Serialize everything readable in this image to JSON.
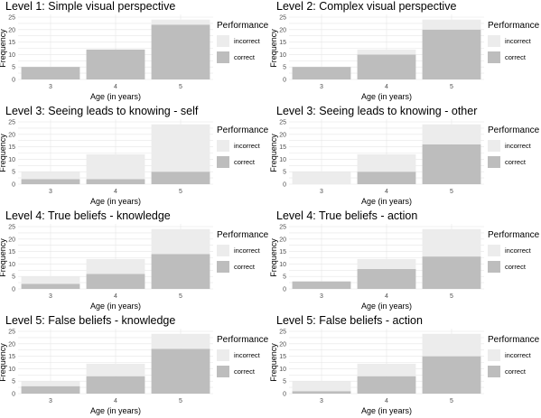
{
  "colors": {
    "incorrect": "#ececec",
    "correct": "#bdbdbd",
    "grid": "#e6e6e6",
    "tick_text": "#4d4d4d"
  },
  "legend": {
    "title": "Performance",
    "items": [
      {
        "label": "incorrect",
        "color": "#ececec"
      },
      {
        "label": "correct",
        "color": "#bdbdbd"
      }
    ]
  },
  "chart_data": [
    {
      "type": "bar",
      "stacked": true,
      "title": "Level 1: Simple visual perspective",
      "xlabel": "Age (in years)",
      "ylabel": "Frequency",
      "categories": [
        "3",
        "4",
        "5"
      ],
      "ylim": [
        0,
        25
      ],
      "yticks": [
        0,
        5,
        10,
        15,
        20,
        25
      ],
      "series": [
        {
          "name": "correct",
          "values": [
            5,
            12,
            22
          ]
        },
        {
          "name": "incorrect",
          "values": [
            0,
            0,
            2
          ]
        }
      ]
    },
    {
      "type": "bar",
      "stacked": true,
      "title": "Level 2: Complex visual perspective",
      "xlabel": "Age (in years)",
      "ylabel": "Frequency",
      "categories": [
        "3",
        "4",
        "5"
      ],
      "ylim": [
        0,
        25
      ],
      "yticks": [
        0,
        5,
        10,
        15,
        20,
        25
      ],
      "series": [
        {
          "name": "correct",
          "values": [
            5,
            10,
            20
          ]
        },
        {
          "name": "incorrect",
          "values": [
            0,
            2,
            4
          ]
        }
      ]
    },
    {
      "type": "bar",
      "stacked": true,
      "title": "Level 3: Seeing leads to knowing - self",
      "xlabel": "Age (in years)",
      "ylabel": "Frequency",
      "categories": [
        "3",
        "4",
        "5"
      ],
      "ylim": [
        0,
        25
      ],
      "yticks": [
        0,
        5,
        10,
        15,
        20,
        25
      ],
      "series": [
        {
          "name": "correct",
          "values": [
            2,
            2,
            5
          ]
        },
        {
          "name": "incorrect",
          "values": [
            3,
            10,
            19
          ]
        }
      ]
    },
    {
      "type": "bar",
      "stacked": true,
      "title": "Level 3: Seeing leads to knowing - other",
      "xlabel": "Age (in years)",
      "ylabel": "Frequency",
      "categories": [
        "3",
        "4",
        "5"
      ],
      "ylim": [
        0,
        25
      ],
      "yticks": [
        0,
        5,
        10,
        15,
        20,
        25
      ],
      "series": [
        {
          "name": "correct",
          "values": [
            0,
            5,
            16
          ]
        },
        {
          "name": "incorrect",
          "values": [
            5,
            7,
            8
          ]
        }
      ]
    },
    {
      "type": "bar",
      "stacked": true,
      "title": "Level 4: True beliefs - knowledge",
      "xlabel": "Age (in years)",
      "ylabel": "Frequency",
      "categories": [
        "3",
        "4",
        "5"
      ],
      "ylim": [
        0,
        25
      ],
      "yticks": [
        0,
        5,
        10,
        15,
        20,
        25
      ],
      "series": [
        {
          "name": "correct",
          "values": [
            2,
            6,
            14
          ]
        },
        {
          "name": "incorrect",
          "values": [
            3,
            6,
            10
          ]
        }
      ]
    },
    {
      "type": "bar",
      "stacked": true,
      "title": "Level 4: True beliefs - action",
      "xlabel": "Age (in years)",
      "ylabel": "Frequency",
      "categories": [
        "3",
        "4",
        "5"
      ],
      "ylim": [
        0,
        25
      ],
      "yticks": [
        0,
        5,
        10,
        15,
        20,
        25
      ],
      "series": [
        {
          "name": "correct",
          "values": [
            3,
            8,
            13
          ]
        },
        {
          "name": "incorrect",
          "values": [
            0,
            4,
            11
          ]
        }
      ]
    },
    {
      "type": "bar",
      "stacked": true,
      "title": "Level 5: False beliefs - knowledge",
      "xlabel": "Age (in years)",
      "ylabel": "Frequency",
      "categories": [
        "3",
        "4",
        "5"
      ],
      "ylim": [
        0,
        25
      ],
      "yticks": [
        0,
        5,
        10,
        15,
        20,
        25
      ],
      "series": [
        {
          "name": "correct",
          "values": [
            3,
            7,
            18
          ]
        },
        {
          "name": "incorrect",
          "values": [
            2,
            5,
            6
          ]
        }
      ]
    },
    {
      "type": "bar",
      "stacked": true,
      "title": "Level 5: False beliefs - action",
      "xlabel": "Age (in years)",
      "ylabel": "Frequency",
      "categories": [
        "3",
        "4",
        "5"
      ],
      "ylim": [
        0,
        25
      ],
      "yticks": [
        0,
        5,
        10,
        15,
        20,
        25
      ],
      "series": [
        {
          "name": "correct",
          "values": [
            1,
            7,
            15
          ]
        },
        {
          "name": "incorrect",
          "values": [
            4,
            5,
            9
          ]
        }
      ]
    }
  ]
}
